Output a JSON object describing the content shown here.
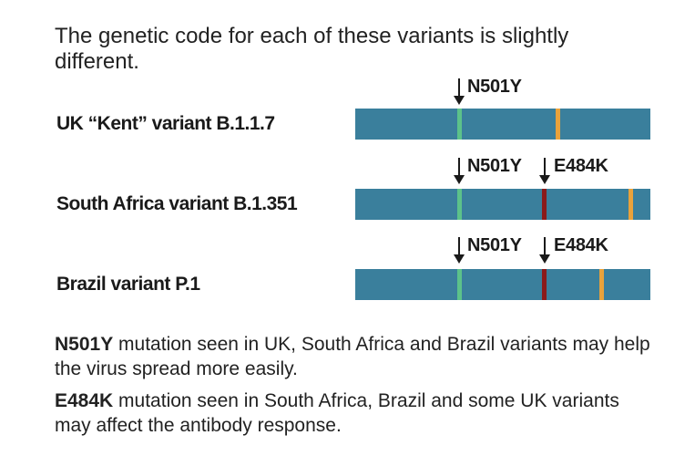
{
  "intro": "The genetic code for each of these variants is slightly different.",
  "colors": {
    "bar": "#3a7f9c",
    "n501y": "#5cc28a",
    "e484k": "#8b1a1a",
    "other": "#e9a23b"
  },
  "variants": [
    {
      "name": "UK “Kent” variant B.1.1.7",
      "labels": [
        "N501Y"
      ]
    },
    {
      "name": "South Africa variant B.1.351",
      "labels": [
        "N501Y",
        "E484K"
      ]
    },
    {
      "name": "Brazil variant P.1",
      "labels": [
        "N501Y",
        "E484K"
      ]
    }
  ],
  "notes": [
    {
      "term": "N501Y",
      "text": " mutation seen in UK, South Africa and Brazil variants may help the virus spread more easily."
    },
    {
      "term": "E484K",
      "text": " mutation seen in South Africa, Brazil and some UK variants may affect the antibody response."
    }
  ]
}
